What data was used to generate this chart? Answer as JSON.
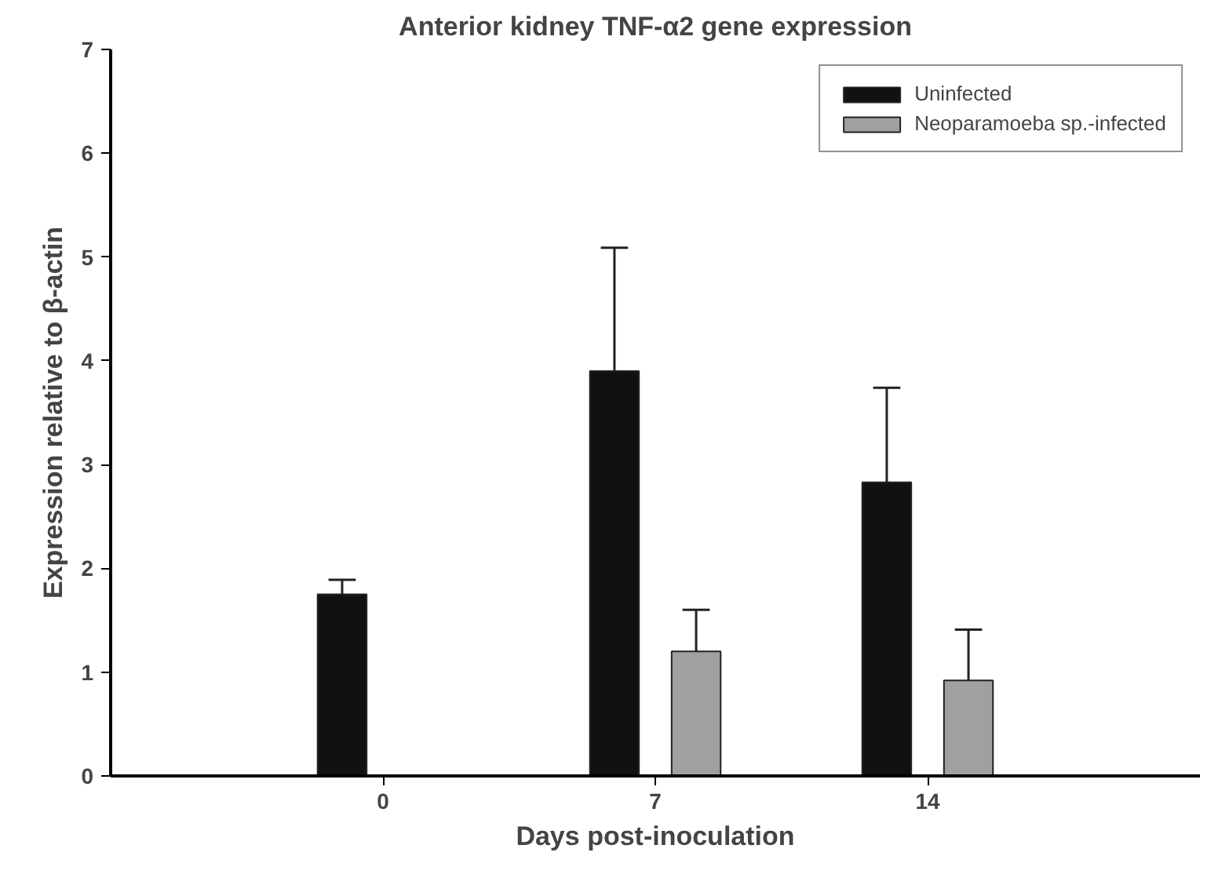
{
  "chart_data": {
    "type": "bar",
    "title": "Anterior kidney TNF-α2 gene expression",
    "xlabel": "Days post-inoculation",
    "ylabel": "Expression relative to β-actin",
    "categories": [
      "0",
      "7",
      "14"
    ],
    "series": [
      {
        "name": "Uninfected",
        "color": "#111111",
        "values": [
          1.75,
          3.9,
          2.83
        ],
        "errors": [
          [
            1.75,
            1.89
          ],
          [
            3.9,
            5.09
          ],
          [
            2.83,
            3.74
          ]
        ]
      },
      {
        "name": "Neoparamoeba sp.-infected",
        "color": "#a0a0a0",
        "values": [
          null,
          1.2,
          0.92
        ],
        "errors": [
          null,
          [
            1.2,
            1.6
          ],
          [
            0.92,
            1.41
          ]
        ]
      }
    ],
    "ylim": [
      0,
      7
    ],
    "yticks": [
      0,
      1,
      2,
      3,
      4,
      5,
      6,
      7
    ],
    "grid": false,
    "legend": "top right"
  }
}
